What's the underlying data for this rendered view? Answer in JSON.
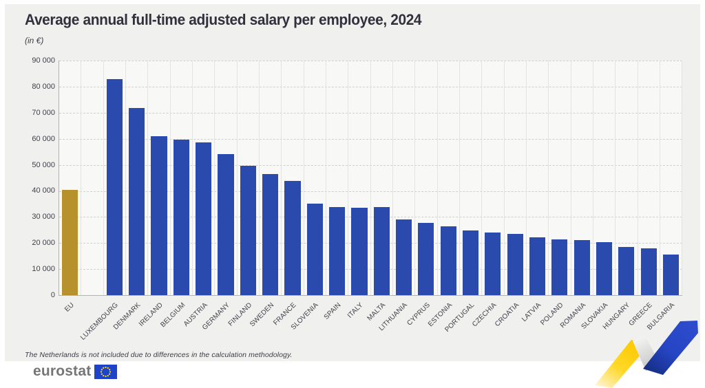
{
  "title": "Average annual full-time adjusted salary per employee, 2024",
  "subtitle": "(in €)",
  "footnote": "The Netherlands is not included due to differences in the calculation methodology.",
  "logo": {
    "text": "eurostat"
  },
  "colors": {
    "panel_bg": "#f0f0ee",
    "plot_bg": "#f8f8f6",
    "bar_blue": "#2b4aad",
    "bar_gold": "#b6912c",
    "deco_yellow": "#ffd313",
    "deco_blue": "#2645c4",
    "deco_silver": "#c9c9c9"
  },
  "chart_data": {
    "type": "bar",
    "title": "Average annual full-time adjusted salary per employee, 2024",
    "subtitle": "(in €)",
    "xlabel": "",
    "ylabel": "€",
    "ylim": [
      0,
      90000
    ],
    "ytick_step": 10000,
    "ytick_labels": [
      "0",
      "10 000",
      "20 000",
      "30 000",
      "40 000",
      "50 000",
      "60 000",
      "70 000",
      "80 000",
      "90 000"
    ],
    "grid": "horizontal dashed, vertical solid",
    "legend": "none",
    "gap_after_first_bar": true,
    "highlight_category": "EU",
    "categories": [
      "EU",
      "LUXEMBOURG",
      "DENMARK",
      "IRELAND",
      "BELGIUM",
      "AUSTRIA",
      "GERMANY",
      "FINLAND",
      "SWEDEN",
      "FRANCE",
      "SLOVENIA",
      "SPAIN",
      "ITALY",
      "MALTA",
      "LITHUANIA",
      "CYPRUS",
      "ESTONIA",
      "PORTUGAL",
      "CZECHIA",
      "CROATIA",
      "LATVIA",
      "POLAND",
      "ROMANIA",
      "SLOVAKIA",
      "HUNGARY",
      "GREECE",
      "BULGARIA"
    ],
    "values": [
      40300,
      83000,
      71700,
      61100,
      59700,
      58600,
      54000,
      49600,
      46500,
      43800,
      35200,
      33800,
      33500,
      33700,
      29000,
      27600,
      26500,
      24900,
      24100,
      23400,
      22300,
      21300,
      21100,
      20300,
      18400,
      17900,
      15500
    ]
  }
}
